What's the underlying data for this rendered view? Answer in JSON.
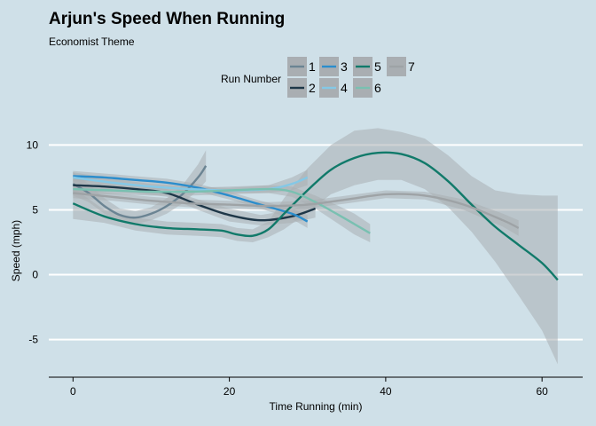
{
  "chart_data": {
    "type": "line",
    "title": "Arjun's Speed When Running",
    "subtitle": "Economist Theme",
    "xlabel": "Time Running (min)",
    "ylabel": "Speed (mph)",
    "xlim": [
      -3.1,
      65.2
    ],
    "ylim": [
      -7.9,
      11.6
    ],
    "x_ticks": [
      0,
      20,
      40,
      60
    ],
    "y_ticks": [
      -5,
      0,
      5,
      10
    ],
    "grid": "horizontal",
    "legend": {
      "title": "Run Number",
      "position": "top",
      "entries": [
        "1",
        "2",
        "3",
        "4",
        "5",
        "6",
        "7"
      ]
    },
    "colors": {
      "background": "#cfe0e8",
      "grid": "#ffffff",
      "band": "#a9aeb2",
      "1": "#6b8493",
      "2": "#1e3748",
      "3": "#2b8dcc",
      "4": "#84c8e6",
      "5": "#117a6a",
      "6": "#79c0b1",
      "7": "#9ea3a6"
    },
    "series": [
      {
        "name": "1",
        "x": [
          0,
          2,
          4,
          6,
          8,
          10,
          12,
          14,
          16,
          17
        ],
        "y": [
          7.0,
          6.3,
          5.3,
          4.6,
          4.4,
          4.7,
          5.3,
          6.2,
          7.5,
          8.4
        ],
        "lo": [
          6.1,
          5.6,
          4.7,
          4.1,
          3.9,
          4.2,
          4.7,
          5.5,
          6.5,
          7.2
        ],
        "hi": [
          7.9,
          7.0,
          5.9,
          5.1,
          4.9,
          5.2,
          5.9,
          6.9,
          8.5,
          9.6
        ]
      },
      {
        "name": "2",
        "x": [
          0,
          4,
          8,
          12,
          16,
          20,
          24,
          28,
          31
        ],
        "y": [
          6.9,
          6.8,
          6.6,
          6.3,
          5.4,
          4.6,
          4.2,
          4.5,
          5.1
        ],
        "lo": [
          6.4,
          6.4,
          6.3,
          6.0,
          5.0,
          4.1,
          3.8,
          4.0,
          4.4
        ],
        "hi": [
          7.4,
          7.2,
          6.9,
          6.6,
          5.8,
          5.1,
          4.6,
          5.0,
          5.8
        ]
      },
      {
        "name": "3",
        "x": [
          0,
          4,
          8,
          12,
          16,
          20,
          24,
          28,
          30
        ],
        "y": [
          7.6,
          7.5,
          7.3,
          7.1,
          6.7,
          6.1,
          5.4,
          4.7,
          4.1
        ],
        "lo": [
          7.2,
          7.2,
          7.0,
          6.8,
          6.4,
          5.8,
          5.1,
          4.3,
          3.6
        ],
        "hi": [
          8.0,
          7.8,
          7.6,
          7.4,
          7.0,
          6.4,
          5.7,
          5.1,
          4.6
        ]
      },
      {
        "name": "4",
        "x": [
          0,
          5,
          10,
          15,
          20,
          25,
          28,
          30
        ],
        "y": [
          7.5,
          7.1,
          6.8,
          6.6,
          6.5,
          6.6,
          7.0,
          7.5
        ],
        "lo": [
          7.1,
          6.8,
          6.6,
          6.4,
          6.3,
          6.3,
          6.5,
          6.9
        ],
        "hi": [
          7.9,
          7.4,
          7.0,
          6.8,
          6.7,
          6.9,
          7.5,
          8.1
        ]
      },
      {
        "name": "5",
        "x": [
          0,
          4,
          8,
          12,
          16,
          19,
          21,
          23,
          25,
          27,
          30,
          33,
          36,
          39,
          42,
          45,
          48,
          51,
          54,
          57,
          60,
          62
        ],
        "y": [
          5.5,
          4.5,
          3.9,
          3.6,
          3.5,
          3.4,
          3.1,
          3.0,
          3.5,
          4.7,
          6.5,
          8.1,
          9.0,
          9.4,
          9.3,
          8.6,
          7.2,
          5.4,
          3.7,
          2.3,
          0.9,
          -0.4
        ],
        "lo": [
          4.3,
          4.0,
          3.4,
          3.1,
          3.0,
          2.9,
          2.6,
          2.5,
          2.9,
          3.5,
          4.8,
          6.2,
          6.9,
          7.3,
          7.3,
          6.6,
          5.2,
          3.3,
          1.0,
          -1.6,
          -4.3,
          -6.9
        ],
        "hi": [
          6.7,
          5.0,
          4.4,
          4.1,
          4.0,
          3.9,
          3.6,
          3.5,
          4.1,
          5.9,
          8.2,
          10.0,
          11.1,
          11.3,
          11.0,
          10.5,
          9.2,
          7.6,
          6.5,
          6.2,
          6.1,
          6.1
        ]
      },
      {
        "name": "6",
        "x": [
          0,
          5,
          10,
          15,
          20,
          25,
          28,
          31,
          34,
          36,
          38
        ],
        "y": [
          6.6,
          6.5,
          6.4,
          6.4,
          6.5,
          6.6,
          6.4,
          5.6,
          4.6,
          3.9,
          3.2
        ],
        "lo": [
          6.2,
          6.2,
          6.1,
          6.1,
          6.2,
          6.3,
          6.0,
          5.1,
          3.9,
          3.1,
          2.5
        ],
        "hi": [
          7.0,
          6.8,
          6.7,
          6.7,
          6.8,
          6.9,
          6.8,
          6.1,
          5.3,
          4.7,
          3.9
        ]
      },
      {
        "name": "7",
        "x": [
          0,
          5,
          10,
          15,
          20,
          25,
          30,
          35,
          40,
          45,
          50,
          55,
          57
        ],
        "y": [
          6.3,
          6.0,
          5.7,
          5.5,
          5.4,
          5.3,
          5.4,
          5.8,
          6.2,
          6.1,
          5.4,
          4.2,
          3.6
        ],
        "lo": [
          5.9,
          5.7,
          5.4,
          5.2,
          5.1,
          5.0,
          5.1,
          5.5,
          5.9,
          5.8,
          5.0,
          3.7,
          3.0
        ],
        "hi": [
          6.7,
          6.3,
          6.0,
          5.8,
          5.7,
          5.6,
          5.7,
          6.1,
          6.5,
          6.4,
          5.8,
          4.7,
          4.2
        ]
      }
    ]
  }
}
